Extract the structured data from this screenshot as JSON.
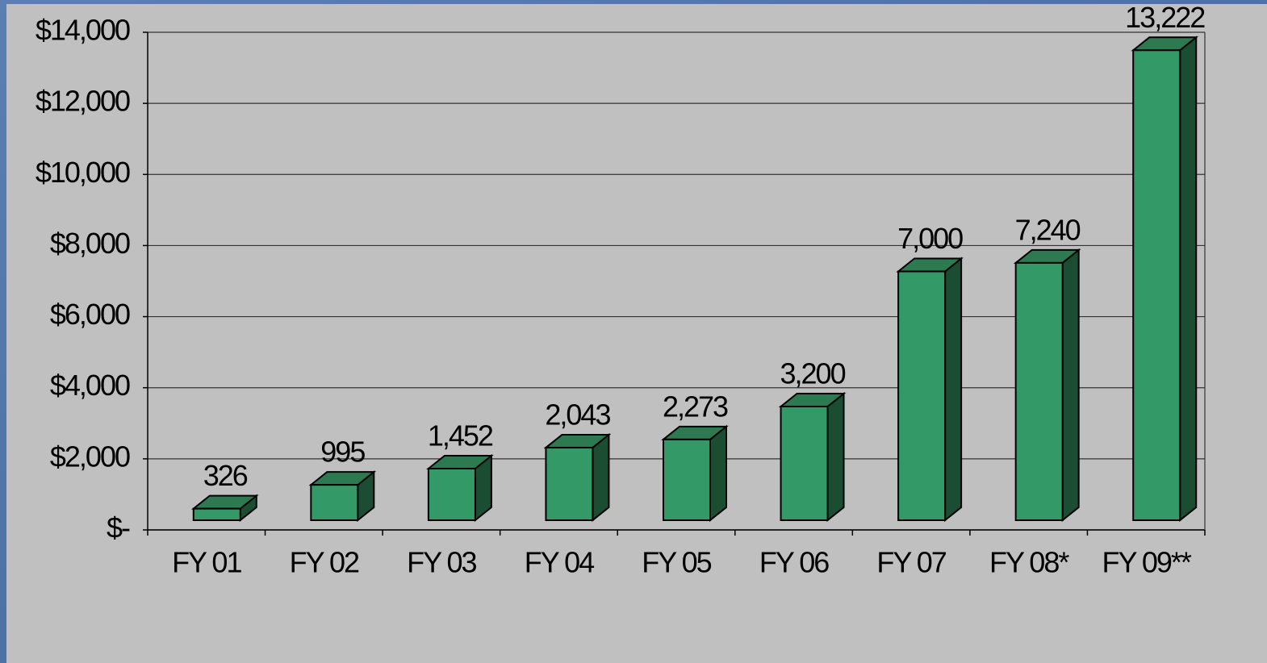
{
  "chart_data": {
    "type": "bar3d",
    "categories": [
      "FY 01",
      "FY 02",
      "FY 03",
      "FY 04",
      "FY 05",
      "FY 06",
      "FY 07",
      "FY 08*",
      "FY 09**"
    ],
    "values": [
      326,
      995,
      1452,
      2043,
      2273,
      3200,
      7000,
      7240,
      13222
    ],
    "value_labels": [
      "326",
      "995",
      "1,452",
      "2,043",
      "2,273",
      "3,200",
      "7,000",
      "7,240",
      "13,222"
    ],
    "color": "#339966",
    "ylim": [
      0,
      14000
    ],
    "yticks": [
      {
        "value": 0,
        "label": "$-"
      },
      {
        "value": 2000,
        "label": "$2,000"
      },
      {
        "value": 4000,
        "label": "$4,000"
      },
      {
        "value": 6000,
        "label": "$6,000"
      },
      {
        "value": 8000,
        "label": "$8,000"
      },
      {
        "value": 10000,
        "label": "$10,000"
      },
      {
        "value": 12000,
        "label": "$12,000"
      },
      {
        "value": 14000,
        "label": "$14,000"
      }
    ],
    "grid": true
  }
}
